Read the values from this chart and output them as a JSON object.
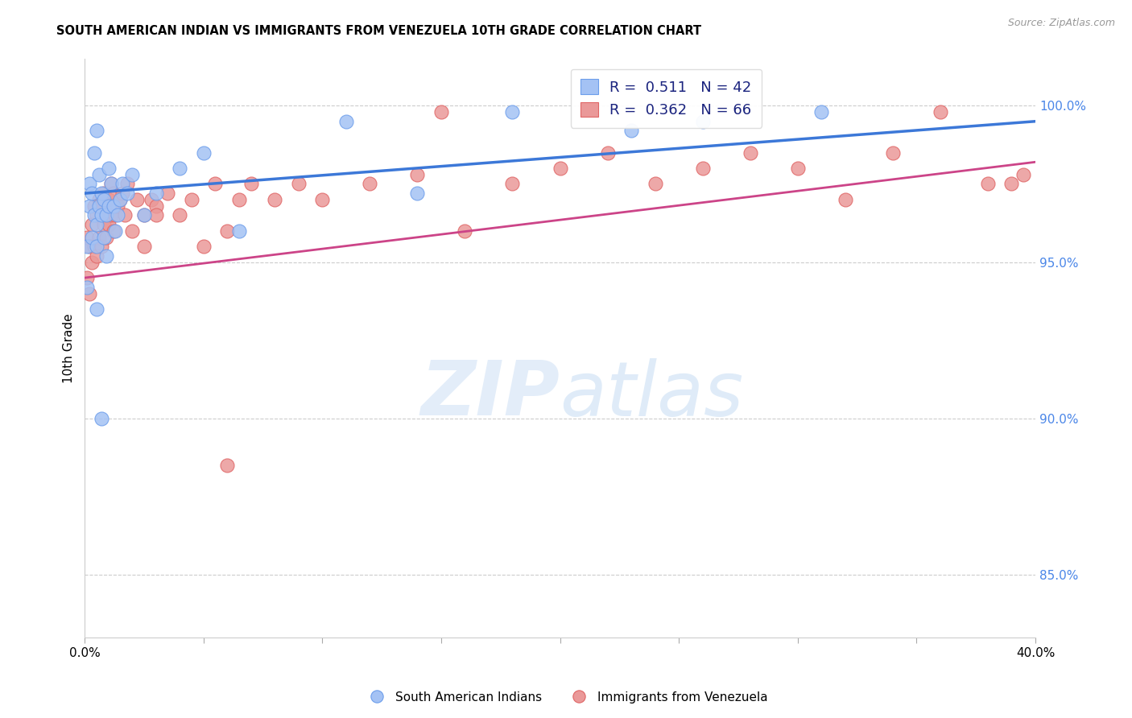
{
  "title": "SOUTH AMERICAN INDIAN VS IMMIGRANTS FROM VENEZUELA 10TH GRADE CORRELATION CHART",
  "source": "Source: ZipAtlas.com",
  "ylabel": "10th Grade",
  "ytick_vals": [
    85.0,
    90.0,
    95.0,
    100.0
  ],
  "xlim": [
    0.0,
    0.4
  ],
  "ylim": [
    83.0,
    101.5
  ],
  "R1": 0.511,
  "N1": 42,
  "R2": 0.362,
  "N2": 66,
  "blue_fill": "#a4c2f4",
  "blue_edge": "#6d9eeb",
  "pink_fill": "#ea9999",
  "pink_edge": "#e06666",
  "line_blue": "#3c78d8",
  "line_pink": "#cc4488",
  "legend_label1": "South American Indians",
  "legend_label2": "Immigrants from Venezuela",
  "blue_scatter_x": [
    0.001,
    0.001,
    0.002,
    0.002,
    0.003,
    0.003,
    0.004,
    0.004,
    0.005,
    0.005,
    0.005,
    0.006,
    0.006,
    0.007,
    0.007,
    0.008,
    0.008,
    0.009,
    0.009,
    0.01,
    0.01,
    0.011,
    0.012,
    0.013,
    0.014,
    0.015,
    0.016,
    0.018,
    0.02,
    0.025,
    0.03,
    0.04,
    0.05,
    0.065,
    0.11,
    0.14,
    0.18,
    0.23,
    0.26,
    0.31,
    0.005,
    0.007
  ],
  "blue_scatter_y": [
    94.2,
    95.5,
    96.8,
    97.5,
    95.8,
    97.2,
    96.5,
    98.5,
    95.5,
    96.2,
    99.2,
    96.8,
    97.8,
    97.2,
    96.5,
    97.0,
    95.8,
    96.5,
    95.2,
    96.8,
    98.0,
    97.5,
    96.8,
    96.0,
    96.5,
    97.0,
    97.5,
    97.2,
    97.8,
    96.5,
    97.2,
    98.0,
    98.5,
    96.0,
    99.5,
    97.2,
    99.8,
    99.2,
    99.5,
    99.8,
    93.5,
    90.0
  ],
  "pink_scatter_x": [
    0.001,
    0.001,
    0.002,
    0.002,
    0.003,
    0.003,
    0.004,
    0.004,
    0.005,
    0.005,
    0.006,
    0.006,
    0.007,
    0.007,
    0.008,
    0.008,
    0.009,
    0.009,
    0.01,
    0.01,
    0.011,
    0.011,
    0.012,
    0.012,
    0.013,
    0.014,
    0.015,
    0.016,
    0.017,
    0.018,
    0.02,
    0.022,
    0.025,
    0.028,
    0.03,
    0.035,
    0.04,
    0.045,
    0.05,
    0.055,
    0.06,
    0.065,
    0.07,
    0.08,
    0.09,
    0.1,
    0.12,
    0.14,
    0.16,
    0.18,
    0.2,
    0.22,
    0.24,
    0.26,
    0.28,
    0.3,
    0.32,
    0.34,
    0.36,
    0.38,
    0.39,
    0.395,
    0.06,
    0.15,
    0.025,
    0.03
  ],
  "pink_scatter_y": [
    94.5,
    95.8,
    94.0,
    95.5,
    95.0,
    96.2,
    95.5,
    96.8,
    95.2,
    96.5,
    95.8,
    97.0,
    95.5,
    96.8,
    96.2,
    97.2,
    95.8,
    96.5,
    96.2,
    97.0,
    96.5,
    97.5,
    96.0,
    97.2,
    96.5,
    96.8,
    97.0,
    97.2,
    96.5,
    97.5,
    96.0,
    97.0,
    96.5,
    97.0,
    96.8,
    97.2,
    96.5,
    97.0,
    95.5,
    97.5,
    96.0,
    97.0,
    97.5,
    97.0,
    97.5,
    97.0,
    97.5,
    97.8,
    96.0,
    97.5,
    98.0,
    98.5,
    97.5,
    98.0,
    98.5,
    98.0,
    97.0,
    98.5,
    99.8,
    97.5,
    97.5,
    97.8,
    88.5,
    99.8,
    95.5,
    96.5
  ]
}
